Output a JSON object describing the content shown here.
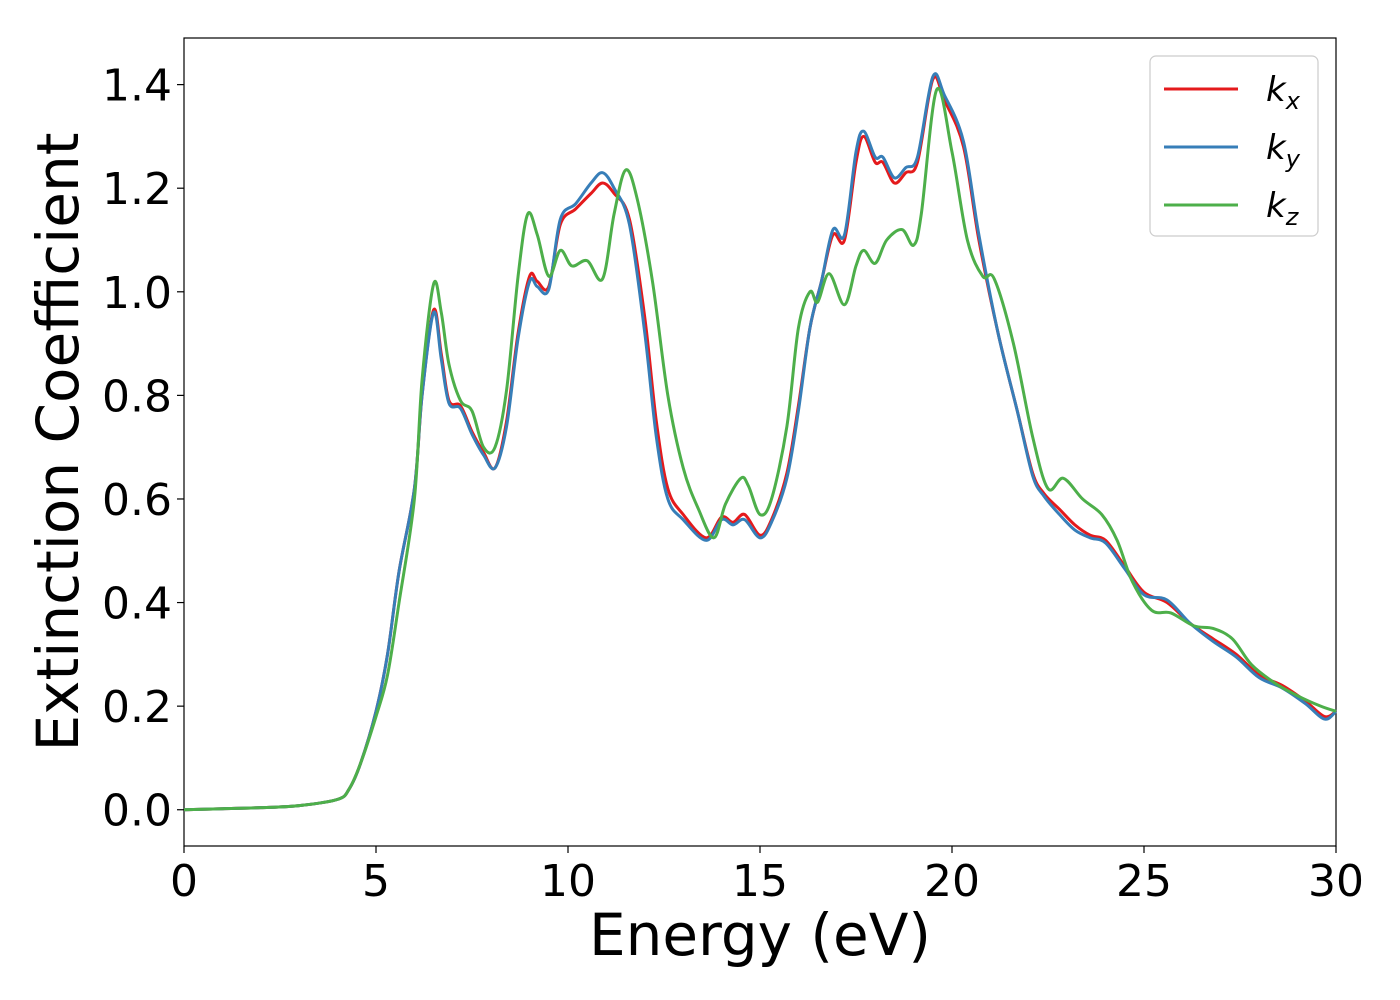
{
  "chart_data": {
    "type": "line",
    "title": "",
    "xlabel": "Energy (eV)",
    "ylabel": "Extinction Coefficient",
    "xlim": [
      0,
      30
    ],
    "ylim": [
      -0.07,
      1.49
    ],
    "xticks": [
      0,
      5,
      10,
      15,
      20,
      25,
      30
    ],
    "xtick_labels": [
      "0",
      "5",
      "10",
      "15",
      "20",
      "25",
      "30"
    ],
    "yticks": [
      0.0,
      0.2,
      0.4,
      0.6,
      0.8,
      1.0,
      1.2,
      1.4
    ],
    "ytick_labels": [
      "0.0",
      "0.2",
      "0.4",
      "0.6",
      "0.8",
      "1.0",
      "1.2",
      "1.4"
    ],
    "grid": false,
    "legend_position": "top-right",
    "series": [
      {
        "name": "k_x",
        "label_main": "k",
        "label_sub": "x",
        "color": "#e41a1c",
        "points": [
          [
            0,
            0.0
          ],
          [
            1,
            0.002
          ],
          [
            2,
            0.004
          ],
          [
            3,
            0.008
          ],
          [
            4,
            0.02
          ],
          [
            4.3,
            0.04
          ],
          [
            4.6,
            0.09
          ],
          [
            5,
            0.19
          ],
          [
            5.3,
            0.3
          ],
          [
            5.6,
            0.46
          ],
          [
            6,
            0.62
          ],
          [
            6.2,
            0.8
          ],
          [
            6.5,
            0.965
          ],
          [
            6.7,
            0.88
          ],
          [
            6.9,
            0.79
          ],
          [
            7.2,
            0.78
          ],
          [
            7.5,
            0.73
          ],
          [
            7.8,
            0.69
          ],
          [
            8.1,
            0.66
          ],
          [
            8.4,
            0.75
          ],
          [
            8.7,
            0.92
          ],
          [
            9,
            1.03
          ],
          [
            9.2,
            1.02
          ],
          [
            9.5,
            1.01
          ],
          [
            9.8,
            1.13
          ],
          [
            10.2,
            1.16
          ],
          [
            10.6,
            1.19
          ],
          [
            10.9,
            1.21
          ],
          [
            11.2,
            1.19
          ],
          [
            11.6,
            1.14
          ],
          [
            12.0,
            0.95
          ],
          [
            12.3,
            0.75
          ],
          [
            12.6,
            0.62
          ],
          [
            13.0,
            0.57
          ],
          [
            13.6,
            0.525
          ],
          [
            14.0,
            0.565
          ],
          [
            14.3,
            0.555
          ],
          [
            14.6,
            0.57
          ],
          [
            15.0,
            0.53
          ],
          [
            15.3,
            0.56
          ],
          [
            15.7,
            0.65
          ],
          [
            16.0,
            0.78
          ],
          [
            16.3,
            0.93
          ],
          [
            16.6,
            1.02
          ],
          [
            16.9,
            1.11
          ],
          [
            17.2,
            1.1
          ],
          [
            17.5,
            1.25
          ],
          [
            17.7,
            1.3
          ],
          [
            18.0,
            1.25
          ],
          [
            18.2,
            1.25
          ],
          [
            18.5,
            1.21
          ],
          [
            18.8,
            1.23
          ],
          [
            19.1,
            1.25
          ],
          [
            19.5,
            1.41
          ],
          [
            19.8,
            1.37
          ],
          [
            20.3,
            1.28
          ],
          [
            20.7,
            1.1
          ],
          [
            21.2,
            0.92
          ],
          [
            21.7,
            0.77
          ],
          [
            22.1,
            0.65
          ],
          [
            22.4,
            0.61
          ],
          [
            22.8,
            0.58
          ],
          [
            23.2,
            0.55
          ],
          [
            23.6,
            0.53
          ],
          [
            24.0,
            0.52
          ],
          [
            24.5,
            0.47
          ],
          [
            25.0,
            0.42
          ],
          [
            25.6,
            0.4
          ],
          [
            26.2,
            0.36
          ],
          [
            26.8,
            0.33
          ],
          [
            27.4,
            0.3
          ],
          [
            28.0,
            0.26
          ],
          [
            28.6,
            0.24
          ],
          [
            29.2,
            0.21
          ],
          [
            29.7,
            0.18
          ],
          [
            30,
            0.19
          ]
        ]
      },
      {
        "name": "k_y",
        "label_main": "k",
        "label_sub": "y",
        "color": "#377eb8",
        "points": [
          [
            0,
            0.0
          ],
          [
            1,
            0.002
          ],
          [
            2,
            0.004
          ],
          [
            3,
            0.008
          ],
          [
            4,
            0.02
          ],
          [
            4.3,
            0.04
          ],
          [
            4.6,
            0.09
          ],
          [
            5,
            0.19
          ],
          [
            5.3,
            0.3
          ],
          [
            5.6,
            0.46
          ],
          [
            6,
            0.62
          ],
          [
            6.2,
            0.8
          ],
          [
            6.5,
            0.96
          ],
          [
            6.7,
            0.87
          ],
          [
            6.9,
            0.785
          ],
          [
            7.2,
            0.775
          ],
          [
            7.5,
            0.725
          ],
          [
            7.8,
            0.685
          ],
          [
            8.1,
            0.66
          ],
          [
            8.4,
            0.74
          ],
          [
            8.7,
            0.91
          ],
          [
            9,
            1.02
          ],
          [
            9.2,
            1.01
          ],
          [
            9.5,
            1.005
          ],
          [
            9.8,
            1.14
          ],
          [
            10.2,
            1.17
          ],
          [
            10.6,
            1.21
          ],
          [
            10.9,
            1.23
          ],
          [
            11.2,
            1.2
          ],
          [
            11.6,
            1.13
          ],
          [
            12.0,
            0.92
          ],
          [
            12.3,
            0.72
          ],
          [
            12.6,
            0.6
          ],
          [
            13.0,
            0.56
          ],
          [
            13.6,
            0.52
          ],
          [
            14.0,
            0.56
          ],
          [
            14.3,
            0.55
          ],
          [
            14.6,
            0.56
          ],
          [
            15.0,
            0.525
          ],
          [
            15.3,
            0.555
          ],
          [
            15.7,
            0.64
          ],
          [
            16.0,
            0.77
          ],
          [
            16.3,
            0.93
          ],
          [
            16.6,
            1.02
          ],
          [
            16.9,
            1.12
          ],
          [
            17.2,
            1.11
          ],
          [
            17.5,
            1.27
          ],
          [
            17.7,
            1.31
          ],
          [
            18.0,
            1.26
          ],
          [
            18.2,
            1.26
          ],
          [
            18.5,
            1.22
          ],
          [
            18.8,
            1.24
          ],
          [
            19.1,
            1.26
          ],
          [
            19.5,
            1.415
          ],
          [
            19.8,
            1.38
          ],
          [
            20.3,
            1.29
          ],
          [
            20.7,
            1.11
          ],
          [
            21.2,
            0.92
          ],
          [
            21.7,
            0.77
          ],
          [
            22.1,
            0.645
          ],
          [
            22.4,
            0.605
          ],
          [
            22.8,
            0.57
          ],
          [
            23.2,
            0.54
          ],
          [
            23.6,
            0.525
          ],
          [
            24.0,
            0.515
          ],
          [
            24.5,
            0.465
          ],
          [
            25.0,
            0.415
          ],
          [
            25.6,
            0.405
          ],
          [
            26.2,
            0.36
          ],
          [
            26.8,
            0.325
          ],
          [
            27.4,
            0.295
          ],
          [
            28.0,
            0.255
          ],
          [
            28.6,
            0.235
          ],
          [
            29.2,
            0.205
          ],
          [
            29.7,
            0.175
          ],
          [
            30,
            0.19
          ]
        ]
      },
      {
        "name": "k_z",
        "label_main": "k",
        "label_sub": "z",
        "color": "#4daf4a",
        "points": [
          [
            0,
            0.0
          ],
          [
            1,
            0.002
          ],
          [
            2,
            0.004
          ],
          [
            3,
            0.008
          ],
          [
            4,
            0.02
          ],
          [
            4.3,
            0.04
          ],
          [
            4.6,
            0.09
          ],
          [
            5,
            0.18
          ],
          [
            5.3,
            0.26
          ],
          [
            5.6,
            0.4
          ],
          [
            6,
            0.6
          ],
          [
            6.2,
            0.83
          ],
          [
            6.5,
            1.015
          ],
          [
            6.7,
            0.96
          ],
          [
            6.9,
            0.86
          ],
          [
            7.2,
            0.79
          ],
          [
            7.5,
            0.77
          ],
          [
            7.8,
            0.7
          ],
          [
            8.1,
            0.7
          ],
          [
            8.4,
            0.81
          ],
          [
            8.7,
            1.03
          ],
          [
            8.95,
            1.15
          ],
          [
            9.2,
            1.11
          ],
          [
            9.5,
            1.03
          ],
          [
            9.8,
            1.08
          ],
          [
            10.1,
            1.05
          ],
          [
            10.5,
            1.06
          ],
          [
            10.9,
            1.025
          ],
          [
            11.2,
            1.15
          ],
          [
            11.5,
            1.235
          ],
          [
            11.8,
            1.18
          ],
          [
            12.2,
            1.02
          ],
          [
            12.6,
            0.8
          ],
          [
            13.0,
            0.66
          ],
          [
            13.4,
            0.58
          ],
          [
            13.8,
            0.525
          ],
          [
            14.1,
            0.59
          ],
          [
            14.5,
            0.64
          ],
          [
            14.7,
            0.625
          ],
          [
            15.0,
            0.57
          ],
          [
            15.3,
            0.6
          ],
          [
            15.7,
            0.74
          ],
          [
            16.0,
            0.93
          ],
          [
            16.3,
            1.0
          ],
          [
            16.5,
            0.98
          ],
          [
            16.8,
            1.035
          ],
          [
            17.2,
            0.975
          ],
          [
            17.5,
            1.05
          ],
          [
            17.7,
            1.08
          ],
          [
            18.0,
            1.055
          ],
          [
            18.3,
            1.1
          ],
          [
            18.7,
            1.12
          ],
          [
            19.0,
            1.09
          ],
          [
            19.2,
            1.15
          ],
          [
            19.6,
            1.39
          ],
          [
            20.0,
            1.27
          ],
          [
            20.4,
            1.1
          ],
          [
            20.8,
            1.03
          ],
          [
            21.1,
            1.025
          ],
          [
            21.6,
            0.9
          ],
          [
            22.1,
            0.72
          ],
          [
            22.5,
            0.62
          ],
          [
            22.9,
            0.64
          ],
          [
            23.4,
            0.6
          ],
          [
            23.9,
            0.57
          ],
          [
            24.3,
            0.52
          ],
          [
            24.7,
            0.44
          ],
          [
            25.2,
            0.385
          ],
          [
            25.7,
            0.38
          ],
          [
            26.3,
            0.355
          ],
          [
            26.8,
            0.35
          ],
          [
            27.3,
            0.33
          ],
          [
            27.8,
            0.28
          ],
          [
            28.4,
            0.245
          ],
          [
            29.0,
            0.22
          ],
          [
            29.6,
            0.2
          ],
          [
            30,
            0.19
          ]
        ]
      }
    ]
  }
}
